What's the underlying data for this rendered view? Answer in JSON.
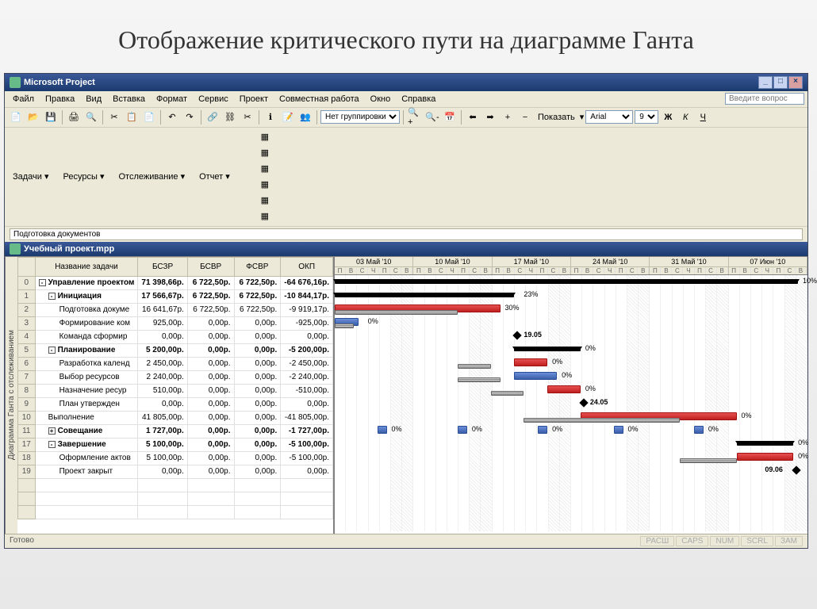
{
  "slide": {
    "title": "Отображение критического пути на диаграмме Ганта"
  },
  "window": {
    "app_title": "Microsoft Project",
    "doc_title": "Учебный проект.mpp",
    "help_placeholder": "Введите вопрос"
  },
  "menu": {
    "file": "Файл",
    "edit": "Правка",
    "view": "Вид",
    "insert": "Вставка",
    "format": "Формат",
    "tools": "Сервис",
    "project": "Проект",
    "collab": "Совместная работа",
    "window": "Окно",
    "help": "Справка"
  },
  "toolbar": {
    "no_group": "Нет группировки",
    "show": "Показать",
    "font": "Arial",
    "fontsize": "9",
    "bold": "Ж",
    "italic": "К",
    "underline": "Ч"
  },
  "secondary": {
    "tasks": "Задачи",
    "resources": "Ресурсы",
    "tracking": "Отслеживание",
    "report": "Отчет"
  },
  "breadcrumb": "Подготовка документов",
  "side_label": "Диаграмма Ганта с отслеживанием",
  "table": {
    "columns": [
      "Название задачи",
      "БСЗР",
      "БСВР",
      "ФСВР",
      "ОКП"
    ],
    "rows": [
      {
        "id": "0",
        "name": "Управление проектом",
        "bszr": "71 398,66р.",
        "bsvr": "6 722,50р.",
        "fsvr": "6 722,50р.",
        "okp": "-64 676,16р.",
        "bold": true,
        "indent": 0,
        "outline": "-"
      },
      {
        "id": "1",
        "name": "Инициация",
        "bszr": "17 566,67р.",
        "bsvr": "6 722,50р.",
        "fsvr": "6 722,50р.",
        "okp": "-10 844,17р.",
        "bold": true,
        "indent": 1,
        "outline": "-"
      },
      {
        "id": "2",
        "name": "Подготовка докуме",
        "bszr": "16 641,67р.",
        "bsvr": "6 722,50р.",
        "fsvr": "6 722,50р.",
        "okp": "-9 919,17р.",
        "bold": false,
        "indent": 2
      },
      {
        "id": "3",
        "name": "Формирование ком",
        "bszr": "925,00р.",
        "bsvr": "0,00р.",
        "fsvr": "0,00р.",
        "okp": "-925,00р.",
        "bold": false,
        "indent": 2
      },
      {
        "id": "4",
        "name": "Команда сформир",
        "bszr": "0,00р.",
        "bsvr": "0,00р.",
        "fsvr": "0,00р.",
        "okp": "0,00р.",
        "bold": false,
        "indent": 2
      },
      {
        "id": "5",
        "name": "Планирование",
        "bszr": "5 200,00р.",
        "bsvr": "0,00р.",
        "fsvr": "0,00р.",
        "okp": "-5 200,00р.",
        "bold": true,
        "indent": 1,
        "outline": "-"
      },
      {
        "id": "6",
        "name": "Разработка календ",
        "bszr": "2 450,00р.",
        "bsvr": "0,00р.",
        "fsvr": "0,00р.",
        "okp": "-2 450,00р.",
        "bold": false,
        "indent": 2
      },
      {
        "id": "7",
        "name": "Выбор ресурсов",
        "bszr": "2 240,00р.",
        "bsvr": "0,00р.",
        "fsvr": "0,00р.",
        "okp": "-2 240,00р.",
        "bold": false,
        "indent": 2
      },
      {
        "id": "8",
        "name": "Назначение ресур",
        "bszr": "510,00р.",
        "bsvr": "0,00р.",
        "fsvr": "0,00р.",
        "okp": "-510,00р.",
        "bold": false,
        "indent": 2
      },
      {
        "id": "9",
        "name": "План утвержден",
        "bszr": "0,00р.",
        "bsvr": "0,00р.",
        "fsvr": "0,00р.",
        "okp": "0,00р.",
        "bold": false,
        "indent": 2
      },
      {
        "id": "10",
        "name": "Выполнение",
        "bszr": "41 805,00р.",
        "bsvr": "0,00р.",
        "fsvr": "0,00р.",
        "okp": "-41 805,00р.",
        "bold": false,
        "indent": 1
      },
      {
        "id": "11",
        "name": "Совещание",
        "bszr": "1 727,00р.",
        "bsvr": "0,00р.",
        "fsvr": "0,00р.",
        "okp": "-1 727,00р.",
        "bold": true,
        "indent": 1,
        "outline": "+"
      },
      {
        "id": "17",
        "name": "Завершение",
        "bszr": "5 100,00р.",
        "bsvr": "0,00р.",
        "fsvr": "0,00р.",
        "okp": "-5 100,00р.",
        "bold": true,
        "indent": 1,
        "outline": "-"
      },
      {
        "id": "18",
        "name": "Оформление актов",
        "bszr": "5 100,00р.",
        "bsvr": "0,00р.",
        "fsvr": "0,00р.",
        "okp": "-5 100,00р.",
        "bold": false,
        "indent": 2
      },
      {
        "id": "19",
        "name": "Проект закрыт",
        "bszr": "0,00р.",
        "bsvr": "0,00р.",
        "fsvr": "0,00р.",
        "okp": "0,00р.",
        "bold": false,
        "indent": 2
      }
    ]
  },
  "gantt": {
    "weeks": [
      "03 Май '10",
      "10 Май '10",
      "17 Май '10",
      "24 Май '10",
      "31 Май '10",
      "07 Июн '10"
    ],
    "days": [
      "П",
      "В",
      "С",
      "Ч",
      "П",
      "С",
      "В"
    ],
    "day_width_pct": 2.38,
    "bars": [
      {
        "row": 0,
        "type": "summary",
        "start": 0,
        "width": 98,
        "label": "10%",
        "label_x": 99
      },
      {
        "row": 1,
        "type": "summary",
        "start": 0,
        "width": 38,
        "label": "23%",
        "label_x": 40
      },
      {
        "row": 2,
        "type": "task-critical",
        "start": 0,
        "width": 35,
        "label": "30%",
        "label_x": 36
      },
      {
        "row": 2,
        "type": "baseline",
        "start": 0,
        "width": 26
      },
      {
        "row": 3,
        "type": "task-normal",
        "start": 0,
        "width": 5,
        "label": "0%",
        "label_x": 7
      },
      {
        "row": 3,
        "type": "baseline",
        "start": 0,
        "width": 4
      },
      {
        "row": 4,
        "type": "milestone",
        "x": 38,
        "label": "19.05",
        "label_x": 40
      },
      {
        "row": 5,
        "type": "summary",
        "start": 38,
        "width": 14,
        "label": "0%",
        "label_x": 53
      },
      {
        "row": 6,
        "type": "task-critical",
        "start": 38,
        "width": 7,
        "label": "0%",
        "label_x": 46
      },
      {
        "row": 6,
        "type": "baseline",
        "start": 26,
        "width": 7
      },
      {
        "row": 7,
        "type": "task-normal",
        "start": 38,
        "width": 9,
        "label": "0%",
        "label_x": 48
      },
      {
        "row": 7,
        "type": "baseline",
        "start": 26,
        "width": 9
      },
      {
        "row": 8,
        "type": "task-critical",
        "start": 45,
        "width": 7,
        "label": "0%",
        "label_x": 53
      },
      {
        "row": 8,
        "type": "baseline",
        "start": 33,
        "width": 7
      },
      {
        "row": 9,
        "type": "milestone",
        "x": 52,
        "label": "24.05",
        "label_x": 54
      },
      {
        "row": 10,
        "type": "task-critical",
        "start": 52,
        "width": 33,
        "label": "0%",
        "label_x": 86
      },
      {
        "row": 10,
        "type": "baseline",
        "start": 40,
        "width": 33
      },
      {
        "row": 11,
        "type": "task-normal",
        "start": 9,
        "width": 2,
        "label": "0%",
        "label_x": 12
      },
      {
        "row": 11,
        "type": "task-normal",
        "start": 26,
        "width": 2,
        "label": "0%",
        "label_x": 29
      },
      {
        "row": 11,
        "type": "task-normal",
        "start": 43,
        "width": 2,
        "label": "0%",
        "label_x": 46
      },
      {
        "row": 11,
        "type": "task-normal",
        "start": 59,
        "width": 2,
        "label": "0%",
        "label_x": 62
      },
      {
        "row": 11,
        "type": "task-normal",
        "start": 76,
        "width": 2,
        "label": "0%",
        "label_x": 79
      },
      {
        "row": 12,
        "type": "summary",
        "start": 85,
        "width": 12,
        "label": "0%",
        "label_x": 98
      },
      {
        "row": 13,
        "type": "task-critical",
        "start": 85,
        "width": 12,
        "label": "0%",
        "label_x": 98
      },
      {
        "row": 13,
        "type": "baseline",
        "start": 73,
        "width": 12
      },
      {
        "row": 14,
        "type": "milestone",
        "x": 97,
        "label": "09.06",
        "label_x": 91
      }
    ],
    "colors": {
      "critical": "#d03030",
      "normal": "#4a6fb8",
      "summary": "#000000",
      "baseline": "#999999"
    }
  },
  "statusbar": {
    "ready": "Готово",
    "indicators": [
      "РАСШ",
      "CAPS",
      "NUM",
      "SCRL",
      "ЗАМ"
    ]
  }
}
